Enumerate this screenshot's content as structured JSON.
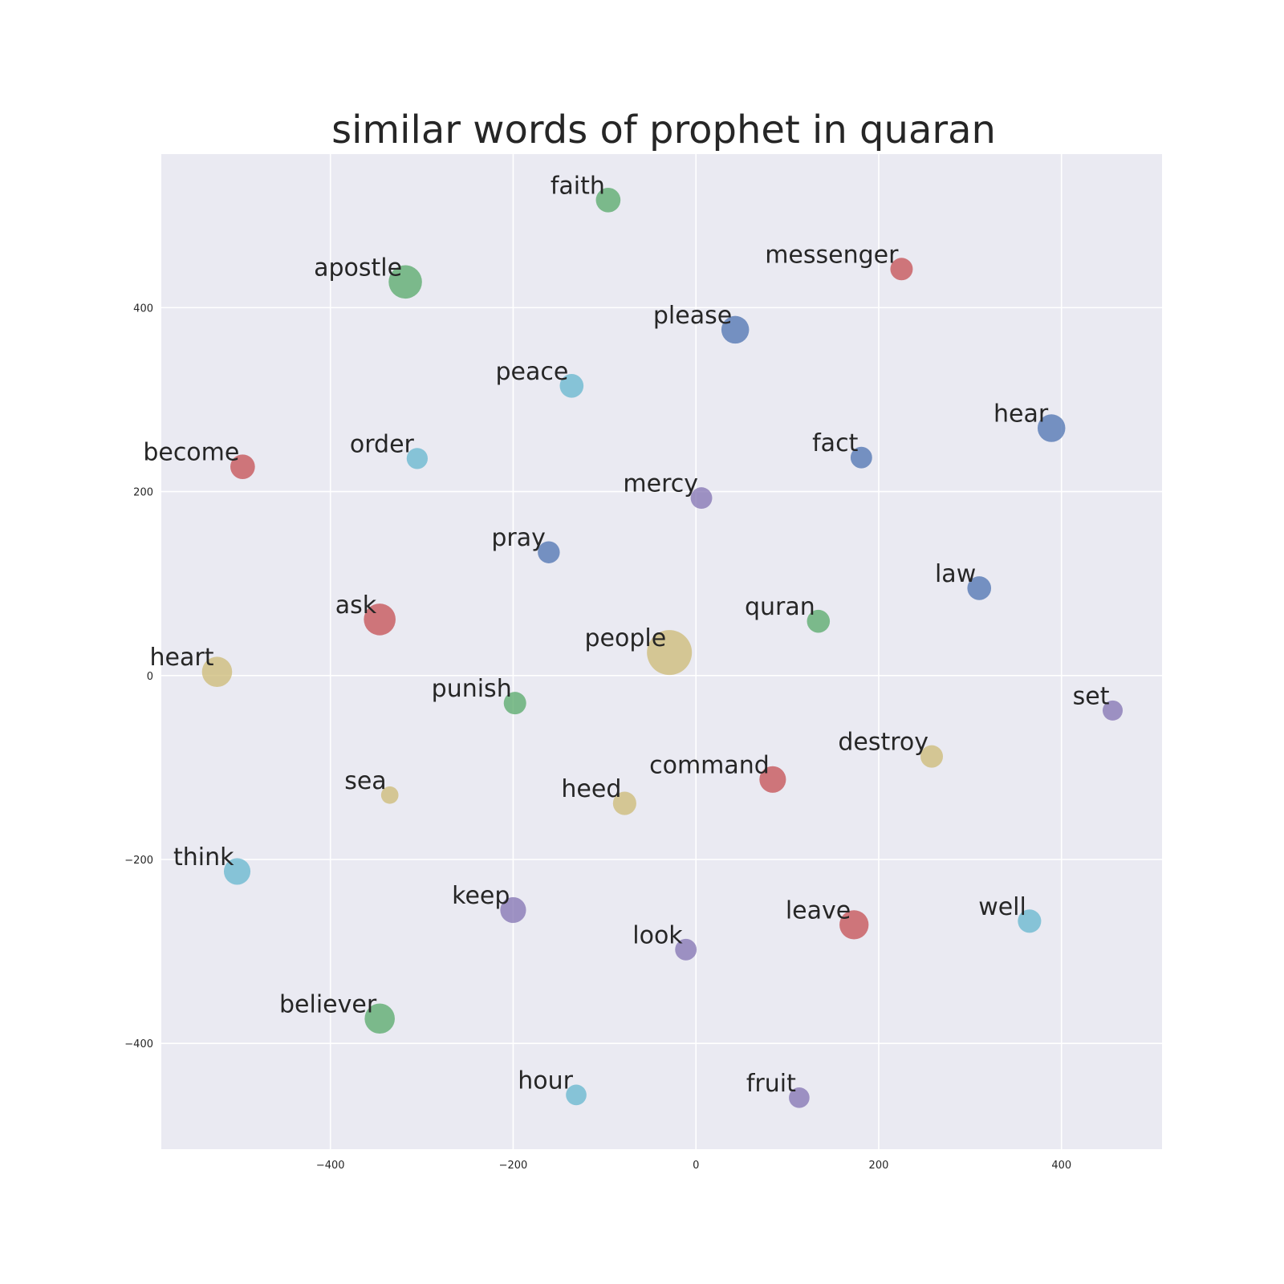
{
  "chart_data": {
    "type": "scatter",
    "title": "similar words of prophet in quaran",
    "xlabel": "",
    "ylabel": "",
    "xlim": [
      -585,
      510
    ],
    "ylim": [
      -515,
      567
    ],
    "xticks": [
      -400,
      -200,
      0,
      200,
      400
    ],
    "yticks": [
      -400,
      -200,
      0,
      200,
      400
    ],
    "tick_labels_x": [
      "−400",
      "−200",
      "0",
      "200",
      "400"
    ],
    "tick_labels_y": [
      "−400",
      "−200",
      "0",
      "200",
      "400"
    ],
    "grid": true,
    "background": "#EAEAF2",
    "points": [
      {
        "word": "faith",
        "x": -96,
        "y": 517,
        "size": 0.3,
        "color": "#55A868"
      },
      {
        "word": "messenger",
        "x": 225,
        "y": 442,
        "size": 0.25,
        "color": "#C44E52"
      },
      {
        "word": "apostle",
        "x": -318,
        "y": 428,
        "size": 0.55,
        "color": "#55A868"
      },
      {
        "word": "please",
        "x": 43,
        "y": 376,
        "size": 0.38,
        "color": "#4C72B0"
      },
      {
        "word": "peace",
        "x": -136,
        "y": 315,
        "size": 0.28,
        "color": "#64B5CD"
      },
      {
        "word": "hear",
        "x": 389,
        "y": 269,
        "size": 0.38,
        "color": "#4C72B0"
      },
      {
        "word": "become",
        "x": -496,
        "y": 227,
        "size": 0.3,
        "color": "#C44E52"
      },
      {
        "word": "order",
        "x": -305,
        "y": 236,
        "size": 0.22,
        "color": "#64B5CD"
      },
      {
        "word": "fact",
        "x": 181,
        "y": 237,
        "size": 0.23,
        "color": "#4C72B0"
      },
      {
        "word": "mercy",
        "x": 6,
        "y": 193,
        "size": 0.23,
        "color": "#8172B2"
      },
      {
        "word": "pray",
        "x": -161,
        "y": 134,
        "size": 0.24,
        "color": "#4C72B0"
      },
      {
        "word": "law",
        "x": 310,
        "y": 95,
        "size": 0.28,
        "color": "#4C72B0"
      },
      {
        "word": "ask",
        "x": -346,
        "y": 61,
        "size": 0.5,
        "color": "#C44E52"
      },
      {
        "word": "quran",
        "x": 134,
        "y": 59,
        "size": 0.26,
        "color": "#55A868"
      },
      {
        "word": "people",
        "x": -29,
        "y": 25,
        "size": 1.0,
        "color": "#CCB974"
      },
      {
        "word": "heart",
        "x": -524,
        "y": 4,
        "size": 0.45,
        "color": "#CCB974"
      },
      {
        "word": "punish",
        "x": -198,
        "y": -30,
        "size": 0.25,
        "color": "#55A868"
      },
      {
        "word": "set",
        "x": 456,
        "y": -38,
        "size": 0.2,
        "color": "#8172B2"
      },
      {
        "word": "destroy",
        "x": 258,
        "y": -88,
        "size": 0.25,
        "color": "#CCB974"
      },
      {
        "word": "command",
        "x": 84,
        "y": -113,
        "size": 0.35,
        "color": "#C44E52"
      },
      {
        "word": "sea",
        "x": -335,
        "y": -130,
        "size": 0.15,
        "color": "#CCB974"
      },
      {
        "word": "heed",
        "x": -78,
        "y": -139,
        "size": 0.27,
        "color": "#CCB974"
      },
      {
        "word": "think",
        "x": -502,
        "y": -213,
        "size": 0.35,
        "color": "#64B5CD"
      },
      {
        "word": "keep",
        "x": -200,
        "y": -255,
        "size": 0.33,
        "color": "#8172B2"
      },
      {
        "word": "leave",
        "x": 173,
        "y": -271,
        "size": 0.42,
        "color": "#C44E52"
      },
      {
        "word": "well",
        "x": 365,
        "y": -267,
        "size": 0.27,
        "color": "#64B5CD"
      },
      {
        "word": "look",
        "x": -11,
        "y": -298,
        "size": 0.23,
        "color": "#8172B2"
      },
      {
        "word": "believer",
        "x": -346,
        "y": -373,
        "size": 0.45,
        "color": "#55A868"
      },
      {
        "word": "hour",
        "x": -131,
        "y": -456,
        "size": 0.21,
        "color": "#64B5CD"
      },
      {
        "word": "fruit",
        "x": 113,
        "y": -459,
        "size": 0.21,
        "color": "#8172B2"
      }
    ]
  }
}
